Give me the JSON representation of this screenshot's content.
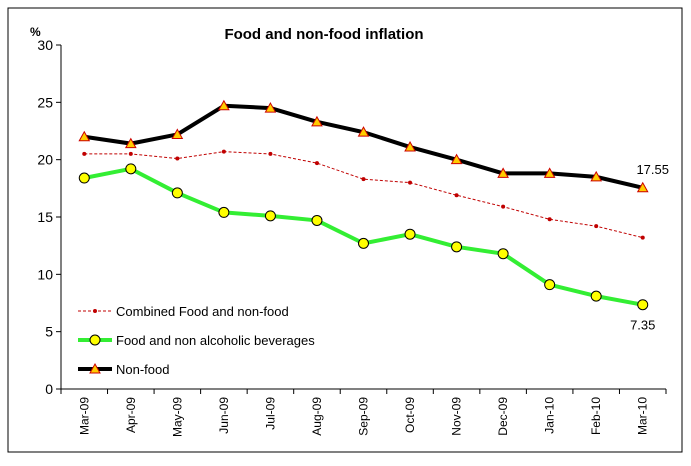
{
  "chart_data": {
    "type": "line",
    "title": "Food and non-food inflation",
    "y_label": "%",
    "categories": [
      "Mar-09",
      "Apr-09",
      "May-09",
      "Jun-09",
      "Jul-09",
      "Aug-09",
      "Sep-09",
      "Oct-09",
      "Nov-09",
      "Dec-09",
      "Jan-10",
      "Feb-10",
      "Mar-10"
    ],
    "series": [
      {
        "name": "Combined  Food and non-food",
        "color": "#c00000",
        "values": [
          20.5,
          20.5,
          20.1,
          20.7,
          20.5,
          19.7,
          18.3,
          18.0,
          16.9,
          15.9,
          14.8,
          14.2,
          13.2
        ]
      },
      {
        "name": "Food and non alcoholic beverages",
        "color": "#33ee33",
        "values": [
          18.4,
          19.2,
          17.1,
          15.4,
          15.1,
          14.7,
          12.7,
          13.5,
          12.4,
          11.8,
          9.1,
          8.1,
          7.35
        ]
      },
      {
        "name": "Non-food",
        "color": "#000000",
        "values": [
          22.0,
          21.4,
          22.2,
          24.7,
          24.5,
          23.3,
          22.4,
          21.1,
          20.0,
          18.8,
          18.8,
          18.5,
          17.55
        ]
      }
    ],
    "ylim": [
      0,
      30
    ],
    "yticks": [
      0,
      5,
      10,
      15,
      20,
      25,
      30
    ],
    "grid": false,
    "legend": "lower left"
  }
}
